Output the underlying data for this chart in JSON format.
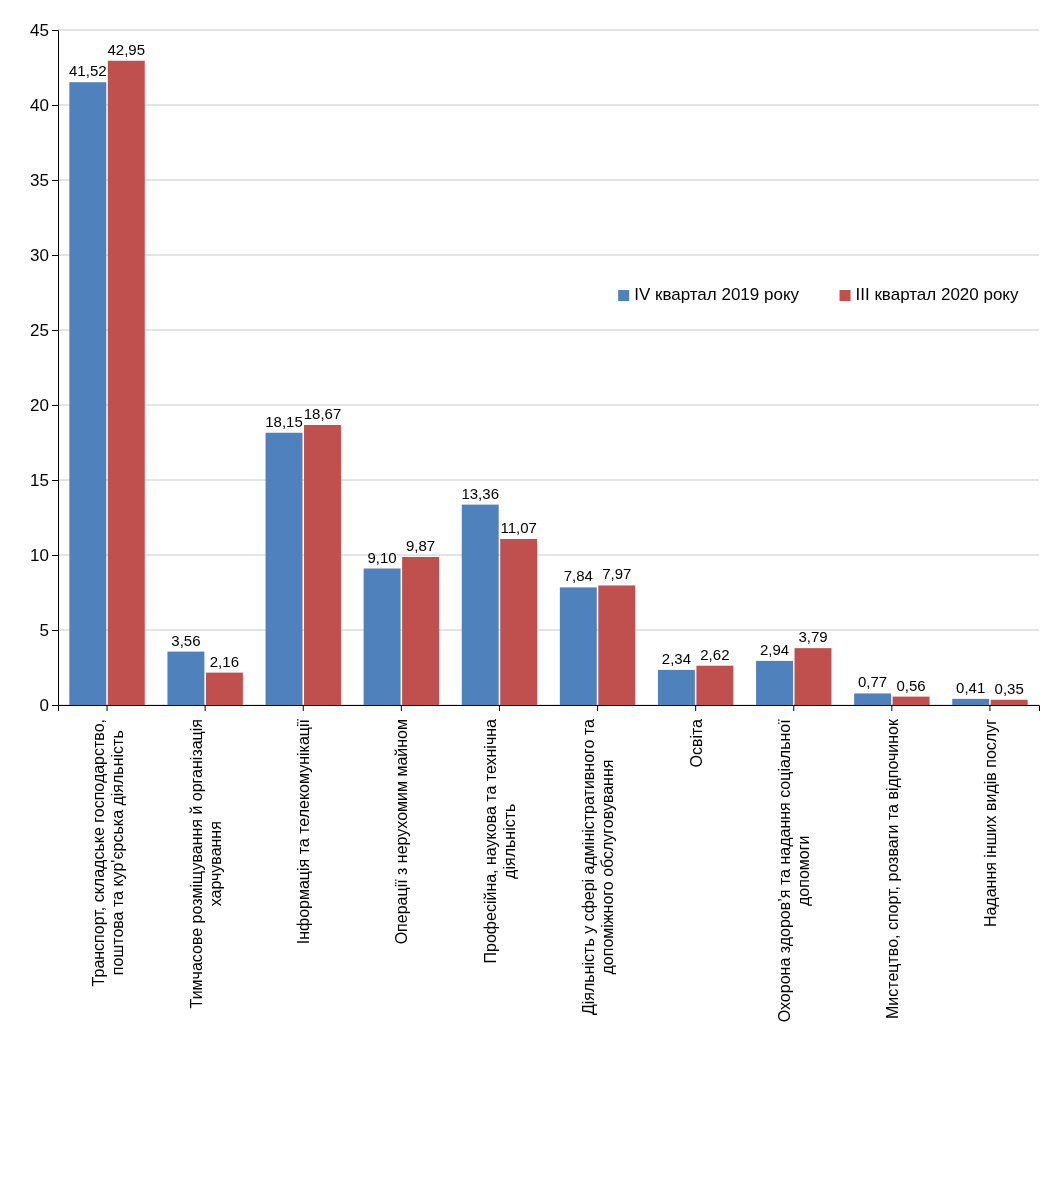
{
  "chart_data": {
    "type": "bar",
    "categories": [
      "Транспорт, складське господарство,\nпоштова та кур'єрська діяльність",
      "Тимчасове розміщування й організація\nхарчування",
      "Інформація та телекомунікації",
      "Операції з нерухомим майном",
      "Професійна, наукова та технічна\nдіяльність",
      "Діяльність у сфері адміністративного та\nдопоміжного обслуговування",
      "Освіта",
      "Охорона здоров’я та надання соціальної\nдопомоги",
      "Мистецтво, спорт, розваги та відпочинок",
      "Надання інших видів послуг"
    ],
    "series": [
      {
        "name": "IV квартал 2019 року",
        "color": "#4f81bd",
        "values": [
          41.52,
          3.56,
          18.15,
          9.1,
          13.36,
          7.84,
          2.34,
          2.94,
          0.77,
          0.41
        ],
        "value_labels": [
          "41,52",
          "3,56",
          "18,15",
          "9,10",
          "13,36",
          "7,84",
          "2,34",
          "2,94",
          "0,77",
          "0,41"
        ]
      },
      {
        "name": "III квартал 2020 року",
        "color": "#c0504d",
        "values": [
          42.95,
          2.16,
          18.67,
          9.87,
          11.07,
          7.97,
          2.62,
          3.79,
          0.56,
          0.35
        ],
        "value_labels": [
          "42,95",
          "2,16",
          "18,67",
          "9,87",
          "11,07",
          "7,97",
          "2,62",
          "3,79",
          "0,56",
          "0,35"
        ]
      }
    ],
    "ylim": [
      0,
      45
    ],
    "yticks": [
      0,
      5,
      10,
      15,
      20,
      25,
      30,
      35,
      40,
      45
    ],
    "grid": "y",
    "legend": "top right"
  }
}
